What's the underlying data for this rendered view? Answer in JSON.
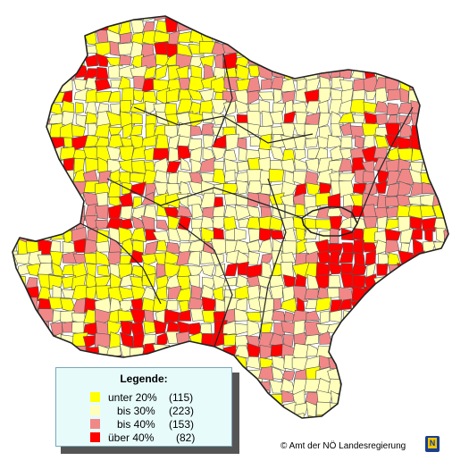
{
  "legend": {
    "title": "Legende:",
    "items": [
      {
        "label": "unter 20%",
        "count": "(115)",
        "color": "#ffff00"
      },
      {
        "label": "bis 30%",
        "count": "(223)",
        "color": "#ffffbb"
      },
      {
        "label": "bis 40%",
        "count": "(153)",
        "color": "#f08888"
      },
      {
        "label": "über 40%",
        "count": "(82)",
        "color": "#ff0000"
      }
    ]
  },
  "credit": "© Amt der NÖ Landesregierung",
  "logo_letter": "N",
  "colors": {
    "border": "#555555",
    "legend_background": "#e8fbfb",
    "logo_blue": "#1a3f8f",
    "logo_yellow": "#f2c500"
  }
}
